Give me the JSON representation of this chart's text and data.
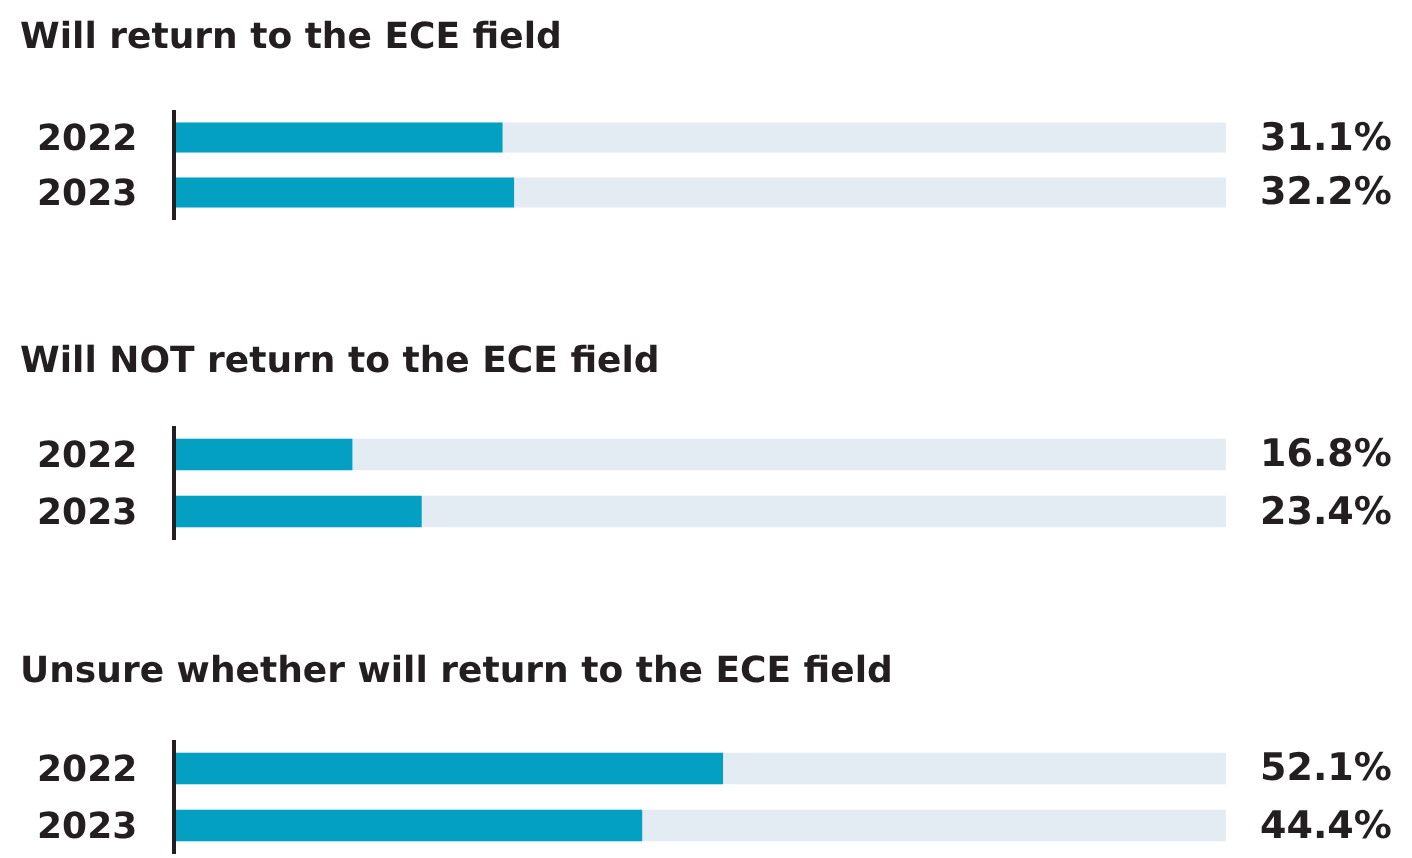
{
  "chart_data": [
    {
      "type": "bar",
      "orientation": "horizontal",
      "title": "Will return to the ECE field",
      "categories": [
        "2022",
        "2023"
      ],
      "values": [
        31.1,
        32.2
      ],
      "value_labels": [
        "31.1%",
        "32.2%"
      ],
      "color": "#03a0c4",
      "xlim": [
        0,
        100
      ],
      "tick_labels": "y"
    },
    {
      "type": "bar",
      "orientation": "horizontal",
      "title": "Will NOT return to the ECE field",
      "categories": [
        "2022",
        "2023"
      ],
      "values": [
        16.8,
        23.4
      ],
      "value_labels": [
        "16.8%",
        "23.4%"
      ],
      "color": "#03a0c4",
      "xlim": [
        0,
        100
      ],
      "tick_labels": "y"
    },
    {
      "type": "bar",
      "orientation": "horizontal",
      "title": "Unsure whether will return to the ECE field",
      "categories": [
        "2022",
        "2023"
      ],
      "values": [
        52.1,
        44.4
      ],
      "value_labels": [
        "52.1%",
        "44.4%"
      ],
      "color": "#03a0c4",
      "xlim": [
        0,
        100
      ],
      "tick_labels": "y"
    }
  ]
}
